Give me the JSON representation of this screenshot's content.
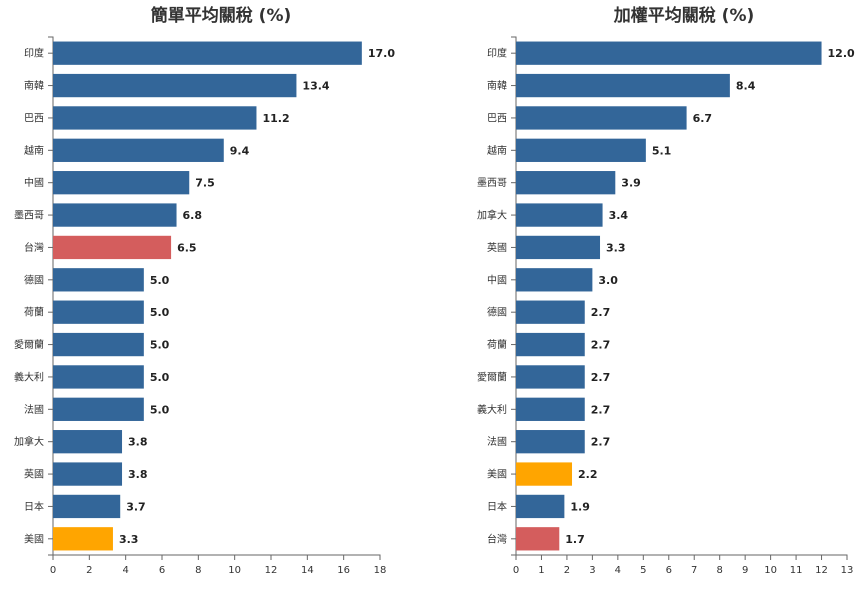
{
  "colors": {
    "default": "#336699",
    "taiwan": "#d45d5d",
    "usa": "#ffa500",
    "axis": "#666666",
    "text": "#333333"
  },
  "chart_data": [
    {
      "type": "bar",
      "orientation": "horizontal",
      "title": "簡單平均關稅 (%)",
      "xlim": [
        0,
        18
      ],
      "ticks": [
        0,
        2,
        4,
        6,
        8,
        10,
        12,
        14,
        16,
        18
      ],
      "categories": [
        "印度",
        "南韓",
        "巴西",
        "越南",
        "中國",
        "墨西哥",
        "台灣",
        "德國",
        "荷蘭",
        "愛爾蘭",
        "義大利",
        "法國",
        "加拿大",
        "英國",
        "日本",
        "美國"
      ],
      "values": [
        17.0,
        13.4,
        11.2,
        9.4,
        7.5,
        6.8,
        6.5,
        5.0,
        5.0,
        5.0,
        5.0,
        5.0,
        3.8,
        3.8,
        3.7,
        3.3
      ],
      "value_labels": [
        "17.0",
        "13.4",
        "11.2",
        "9.4",
        "7.5",
        "6.8",
        "6.5",
        "5.0",
        "5.0",
        "5.0",
        "5.0",
        "5.0",
        "3.8",
        "3.8",
        "3.7",
        "3.3"
      ],
      "highlight": {
        "台灣": "taiwan",
        "美國": "usa"
      }
    },
    {
      "type": "bar",
      "orientation": "horizontal",
      "title": "加權平均關稅 (%)",
      "xlim": [
        0,
        13
      ],
      "ticks": [
        0,
        1,
        2,
        3,
        4,
        5,
        6,
        7,
        8,
        9,
        10,
        11,
        12,
        13
      ],
      "categories": [
        "印度",
        "南韓",
        "巴西",
        "越南",
        "墨西哥",
        "加拿大",
        "英國",
        "中國",
        "德國",
        "荷蘭",
        "愛爾蘭",
        "義大利",
        "法國",
        "美國",
        "日本",
        "台灣"
      ],
      "values": [
        12.0,
        8.4,
        6.7,
        5.1,
        3.9,
        3.4,
        3.3,
        3.0,
        2.7,
        2.7,
        2.7,
        2.7,
        2.7,
        2.2,
        1.9,
        1.7
      ],
      "value_labels": [
        "12.0",
        "8.4",
        "6.7",
        "5.1",
        "3.9",
        "3.4",
        "3.3",
        "3.0",
        "2.7",
        "2.7",
        "2.7",
        "2.7",
        "2.7",
        "2.2",
        "1.9",
        "1.7"
      ],
      "highlight": {
        "台灣": "taiwan",
        "美國": "usa"
      }
    }
  ]
}
